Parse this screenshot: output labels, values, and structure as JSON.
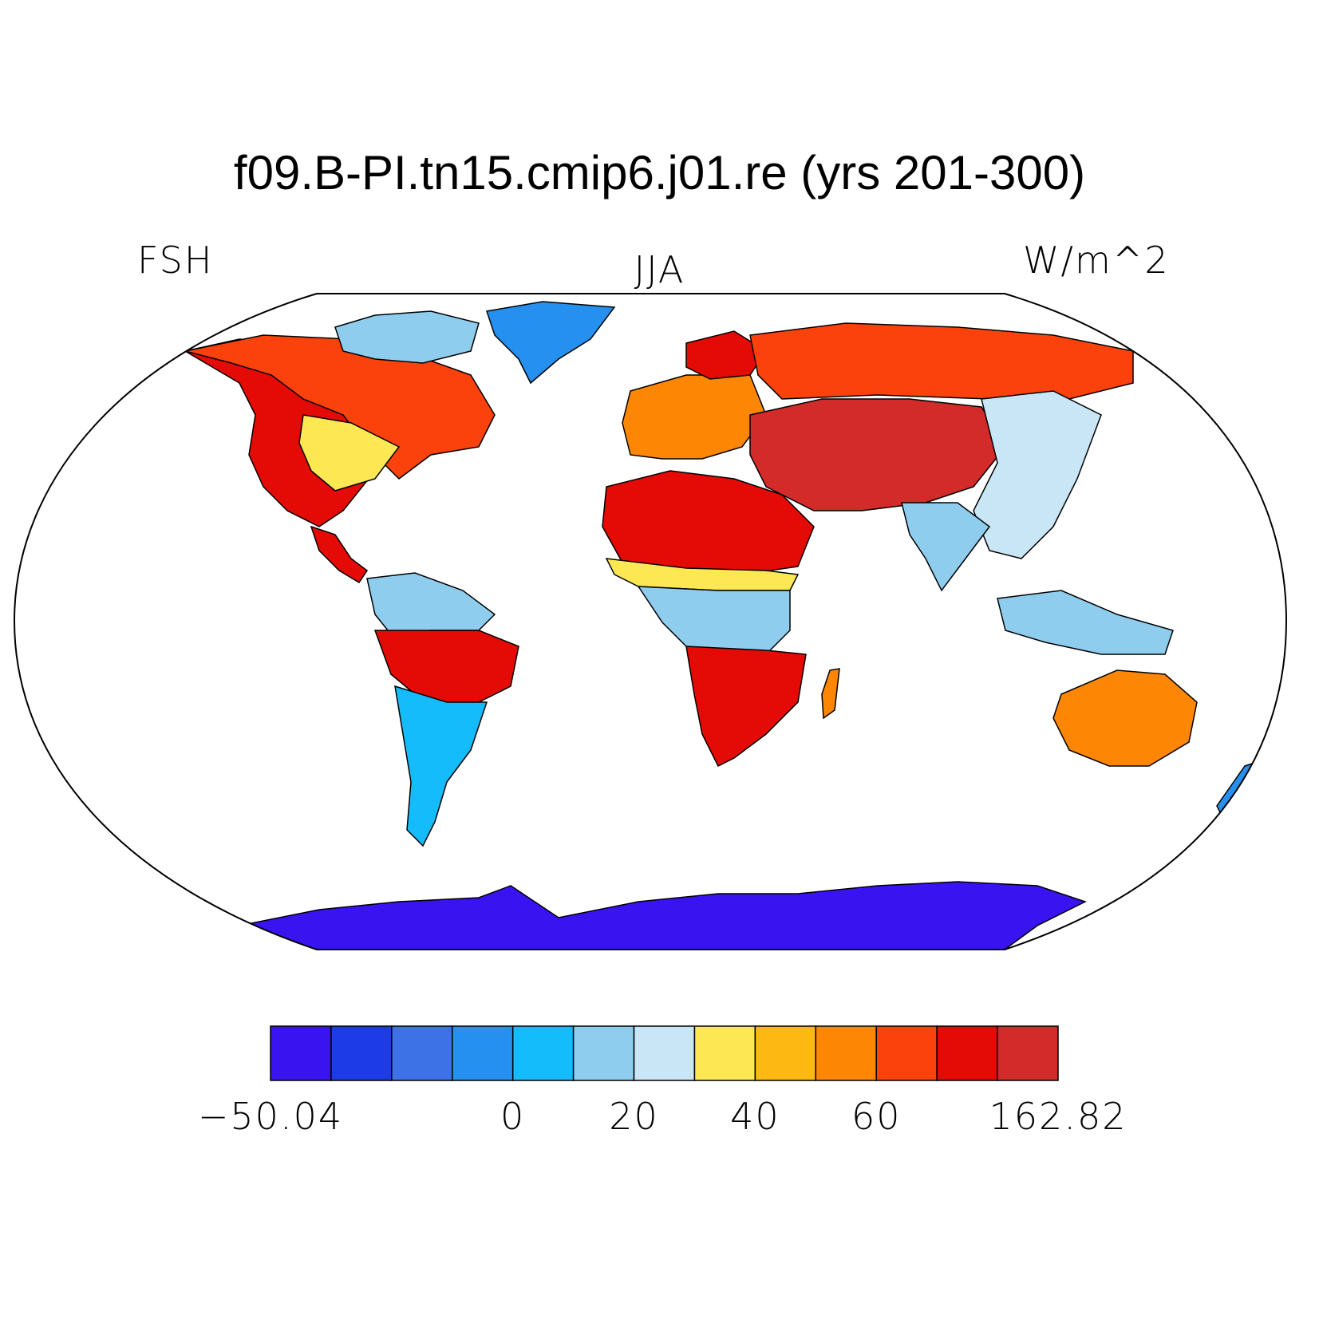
{
  "title": "f09.B-PI.tn15.cmip6.j01.re (yrs 201-300)",
  "left_string": "FSH",
  "center_string": "JJA",
  "right_string": "W/m^2",
  "map": {
    "projection": "Robinson",
    "variable": "FSH",
    "season": "JJA",
    "units": "W/m^2",
    "regions": [
      {
        "name": "north-america",
        "level": 11
      },
      {
        "name": "canada",
        "level": 10
      },
      {
        "name": "us-east",
        "level": 7
      },
      {
        "name": "arctic-islands",
        "level": 5
      },
      {
        "name": "greenland",
        "level": 3
      },
      {
        "name": "central-america",
        "level": 11
      },
      {
        "name": "south-america-north",
        "level": 5
      },
      {
        "name": "south-america-band",
        "level": 11
      },
      {
        "name": "south-america-south",
        "level": 4
      },
      {
        "name": "europe",
        "level": 9
      },
      {
        "name": "scandinavia",
        "level": 11
      },
      {
        "name": "siberia",
        "level": 10
      },
      {
        "name": "central-asia",
        "level": 12
      },
      {
        "name": "east-asia",
        "level": 6
      },
      {
        "name": "south-asia",
        "level": 5
      },
      {
        "name": "sahara",
        "level": 11
      },
      {
        "name": "sahel",
        "level": 7
      },
      {
        "name": "central-africa",
        "level": 5
      },
      {
        "name": "southern-africa",
        "level": 11
      },
      {
        "name": "madagascar",
        "level": 9
      },
      {
        "name": "maritime-continent",
        "level": 5
      },
      {
        "name": "australia",
        "level": 9
      },
      {
        "name": "new-zealand",
        "level": 3
      },
      {
        "name": "antarctica",
        "level": 0
      }
    ]
  },
  "colorbar": {
    "colors": [
      "#3a14f0",
      "#1e3be8",
      "#3c72e6",
      "#2590ef",
      "#15bcfb",
      "#8fcdee",
      "#c8e6f5",
      "#fde853",
      "#fdb912",
      "#fd8705",
      "#fb420c",
      "#e40a06",
      "#d32a2a"
    ],
    "labels": [
      {
        "text": "−50.04",
        "boundary": 0
      },
      {
        "text": "0",
        "boundary": 4
      },
      {
        "text": "20",
        "boundary": 6
      },
      {
        "text": "40",
        "boundary": 8
      },
      {
        "text": "60",
        "boundary": 10
      },
      {
        "text": "162.82",
        "boundary": 13
      }
    ]
  }
}
